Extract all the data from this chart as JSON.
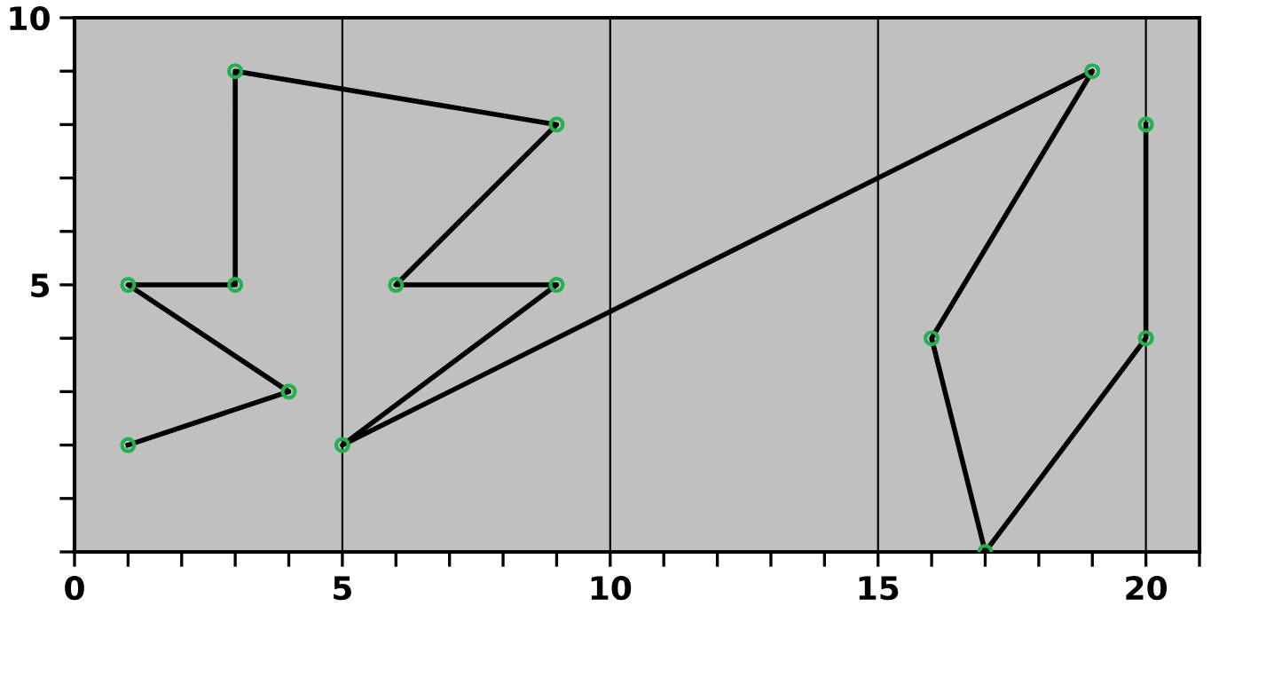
{
  "chart_data": {
    "type": "line",
    "x": [
      1,
      4,
      1,
      3,
      3,
      9,
      6,
      9,
      5,
      19,
      16,
      17,
      20,
      20
    ],
    "series": [
      {
        "color": "#000000",
        "values": [
          2,
          3,
          5,
          5,
          9,
          8,
          5,
          5,
          2,
          9,
          4,
          0,
          4,
          8
        ]
      }
    ],
    "marker": "circle",
    "line_style": "solid",
    "xlim": [
      0,
      21
    ],
    "ylim": [
      0,
      10
    ],
    "xticks": [
      0,
      {
        "value": 1,
        "label": null
      },
      {
        "value": 2,
        "label": null
      },
      {
        "value": 3,
        "label": null
      },
      {
        "value": 4,
        "label": null
      },
      5,
      {
        "value": 6,
        "label": null
      },
      {
        "value": 7,
        "label": null
      },
      {
        "value": 8,
        "label": null
      },
      {
        "value": 9,
        "label": null
      },
      10,
      {
        "value": 11,
        "label": null
      },
      {
        "value": 12,
        "label": null
      },
      {
        "value": 13,
        "label": null
      },
      {
        "value": 14,
        "label": null
      },
      15,
      {
        "value": 16,
        "label": null
      },
      {
        "value": 17,
        "label": null
      },
      {
        "value": 18,
        "label": null
      },
      {
        "value": 19,
        "label": null
      },
      20,
      {
        "value": 21,
        "label": null
      }
    ],
    "yticks": [
      {
        "value": 0,
        "label": null
      },
      {
        "value": 1,
        "label": null
      },
      {
        "value": 2,
        "label": null
      },
      {
        "value": 3,
        "label": null
      },
      {
        "value": 4,
        "label": null
      },
      5,
      {
        "value": 6,
        "label": null
      },
      {
        "value": 7,
        "label": null
      },
      {
        "value": 8,
        "label": null
      },
      {
        "value": 9,
        "label": null
      },
      10
    ],
    "grid": "x"
  }
}
